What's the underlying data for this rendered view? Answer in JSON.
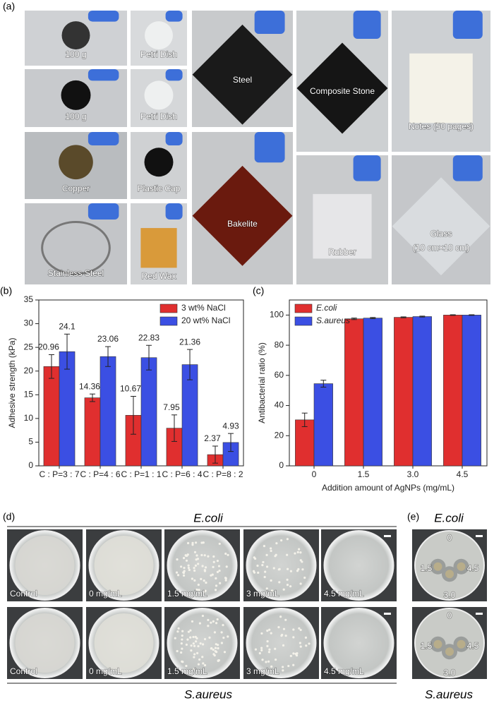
{
  "panels": {
    "a": {
      "label": "(a)",
      "photos": [
        "100 g",
        "Petri Dish",
        "100 g",
        "Petri Dish",
        "Copper",
        "Plastic Cap",
        "Stainless Steel",
        "Red Wax",
        "Steel",
        "Bakelite",
        "Composite Stone",
        "Rubber",
        "Notes (50 pages)",
        "Glass"
      ],
      "glass_size": "(10 cm×10 cm)"
    },
    "d": {
      "label": "(d)",
      "top": "E.coli",
      "bottom": "S.aureus",
      "rows": [
        [
          "Control",
          "0 mg/mL",
          "1.5 mg/mL",
          "3 mg/mL",
          "4.5 mg/mL"
        ],
        [
          "Control",
          "0 mg/mL",
          "1.5 mg/mL",
          "3 mg/mL",
          "4.5 mg/mL"
        ]
      ]
    },
    "e": {
      "label": "(e)",
      "top": "E.coli",
      "bottom": "S.aureus",
      "doses": [
        "0",
        "1.5",
        "4.5",
        "3.0"
      ]
    }
  },
  "chart_data": [
    {
      "type": "bar",
      "panel_label": "(b)",
      "y_label": "Adhesive strength (kPa)",
      "categories": [
        "C : P=3 : 7",
        "C : P=4 : 6",
        "C : P=1 : 1",
        "C : P=6 : 4",
        "C : P=8 : 2"
      ],
      "series": [
        {
          "name": "3 wt% NaCl",
          "color": "#e02f2f",
          "values": [
            20.96,
            14.36,
            10.67,
            7.95,
            2.37
          ],
          "errors": [
            2.5,
            0.8,
            4.0,
            2.8,
            1.8
          ]
        },
        {
          "name": "20 wt% NaCl",
          "color": "#3b4fe3",
          "values": [
            24.1,
            23.06,
            22.83,
            21.36,
            4.93
          ],
          "errors": [
            3.7,
            2.1,
            2.6,
            3.2,
            1.9
          ]
        }
      ],
      "ylim": [
        0,
        35
      ],
      "yticks": [
        0,
        5,
        10,
        15,
        20,
        25,
        30,
        35
      ],
      "value_labels_shown": true,
      "legend": "top-right"
    },
    {
      "type": "bar",
      "panel_label": "(c)",
      "x_label": "Addition amount of AgNPs (mg/mL)",
      "y_label": "Antibacterial ratio (%)",
      "categories": [
        "0",
        "1.5",
        "3.0",
        "4.5"
      ],
      "series": [
        {
          "name": "E.coli",
          "color": "#e02f2f",
          "values": [
            30.5,
            97.5,
            98.5,
            100
          ],
          "errors": [
            4.5,
            0.5,
            0.3,
            0.2
          ]
        },
        {
          "name": "S.aureus",
          "color": "#3b4fe3",
          "values": [
            54.5,
            98,
            99,
            100
          ],
          "errors": [
            2.3,
            0.4,
            0.3,
            0.2
          ]
        }
      ],
      "ylim": [
        0,
        110
      ],
      "yticks": [
        0,
        20,
        40,
        60,
        80,
        100
      ],
      "value_labels_shown": false,
      "legend": "top-left"
    }
  ]
}
